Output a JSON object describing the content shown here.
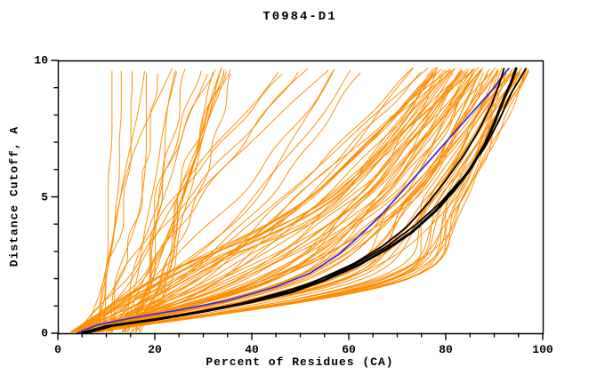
{
  "chart_data": {
    "type": "line",
    "title": "T0984-D1",
    "xlabel": "Percent of Residues (CA)",
    "ylabel": "Distance Cutoff, A",
    "xlim": [
      0,
      100
    ],
    "ylim": [
      0,
      10
    ],
    "x_major_ticks": [
      0,
      20,
      40,
      60,
      80,
      100
    ],
    "x_minor_step": 5,
    "y_major_ticks": [
      0,
      5,
      10
    ],
    "y_minor_step": 1,
    "grid": false,
    "legend": "none",
    "frame_color": "#000000",
    "colors": {
      "ensemble": "#ff8c00",
      "highlight": "#3b2fd6",
      "reference": "#000000"
    },
    "series": [
      {
        "name": "reference-model-thick",
        "color": "#000000",
        "width": 3.0,
        "points": [
          [
            5,
            0
          ],
          [
            10,
            0.25
          ],
          [
            20,
            0.5
          ],
          [
            30,
            0.8
          ],
          [
            40,
            1.15
          ],
          [
            48,
            1.5
          ],
          [
            55,
            1.95
          ],
          [
            62,
            2.5
          ],
          [
            68,
            3.1
          ],
          [
            73,
            3.7
          ],
          [
            78,
            4.5
          ],
          [
            82,
            5.3
          ],
          [
            85,
            6.0
          ],
          [
            88,
            6.9
          ],
          [
            90,
            7.7
          ],
          [
            92,
            8.6
          ],
          [
            93.5,
            9.2
          ],
          [
            94.5,
            9.7
          ]
        ]
      },
      {
        "name": "reference-model-2",
        "color": "#000000",
        "width": 1.8,
        "points": [
          [
            6,
            0
          ],
          [
            12,
            0.3
          ],
          [
            25,
            0.65
          ],
          [
            38,
            1.1
          ],
          [
            50,
            1.7
          ],
          [
            60,
            2.4
          ],
          [
            68,
            3.2
          ],
          [
            74,
            4.0
          ],
          [
            79,
            4.8
          ],
          [
            84,
            5.8
          ],
          [
            88,
            6.8
          ],
          [
            91,
            7.8
          ],
          [
            93.5,
            8.8
          ],
          [
            95.5,
            9.4
          ],
          [
            96.5,
            9.7
          ]
        ]
      },
      {
        "name": "reference-model-3",
        "color": "#000000",
        "width": 1.8,
        "points": [
          [
            5,
            0
          ],
          [
            11,
            0.28
          ],
          [
            22,
            0.55
          ],
          [
            33,
            0.9
          ],
          [
            44,
            1.35
          ],
          [
            53,
            1.9
          ],
          [
            61,
            2.55
          ],
          [
            67,
            3.2
          ],
          [
            72,
            3.9
          ],
          [
            76,
            4.7
          ],
          [
            80,
            5.6
          ],
          [
            84,
            6.6
          ],
          [
            87,
            7.5
          ],
          [
            89.5,
            8.4
          ],
          [
            91,
            9.1
          ],
          [
            92,
            9.7
          ]
        ]
      },
      {
        "name": "highlight-model-blue",
        "color": "#3b2fd6",
        "width": 1.8,
        "points": [
          [
            4,
            0
          ],
          [
            8,
            0.3
          ],
          [
            15,
            0.55
          ],
          [
            25,
            0.85
          ],
          [
            35,
            1.2
          ],
          [
            45,
            1.7
          ],
          [
            52,
            2.2
          ],
          [
            58,
            2.9
          ],
          [
            63,
            3.7
          ],
          [
            67,
            4.4
          ],
          [
            71,
            5.2
          ],
          [
            75,
            6.0
          ],
          [
            79,
            6.8
          ],
          [
            83,
            7.6
          ],
          [
            87,
            8.4
          ],
          [
            90,
            9.0
          ],
          [
            92,
            9.5
          ],
          [
            93,
            9.7
          ]
        ]
      }
    ],
    "ensemble": {
      "name": "server-models",
      "color": "#ff8c00",
      "width": 1,
      "seed": 7,
      "families": [
        {
          "name": "steep",
          "count": 22,
          "x_at_y0": [
            6,
            18
          ],
          "x_at_y2": [
            7,
            24
          ],
          "x_at_y5": [
            9,
            30
          ],
          "x_at_ytop": [
            10,
            40
          ]
        },
        {
          "name": "band",
          "count": 70,
          "x_at_y0": [
            3,
            8
          ],
          "x_at_y2": [
            20,
            72
          ],
          "x_at_y5": [
            52,
            84
          ],
          "x_at_ytop": [
            78,
            97
          ]
        },
        {
          "name": "middle",
          "count": 16,
          "x_at_y0": [
            4,
            10
          ],
          "x_at_y2": [
            12,
            34
          ],
          "x_at_y5": [
            24,
            58
          ],
          "x_at_ytop": [
            42,
            86
          ]
        }
      ]
    }
  }
}
